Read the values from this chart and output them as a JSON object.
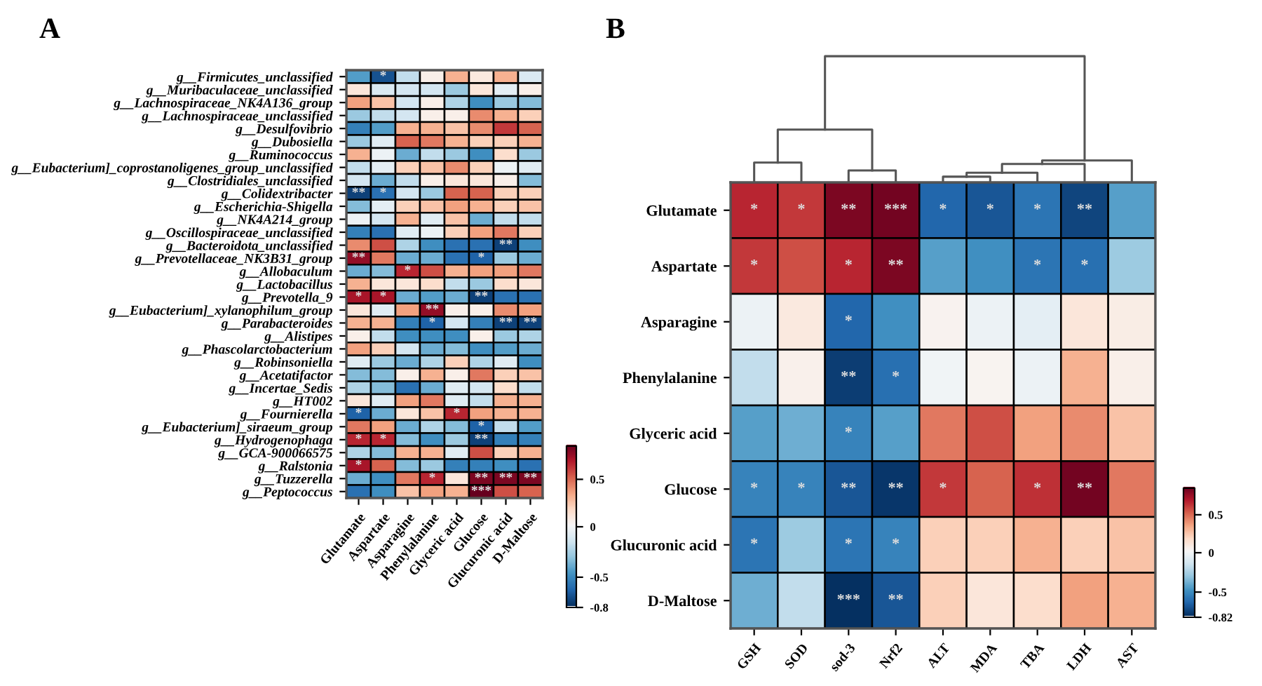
{
  "chart_data": [
    {
      "type": "heatmap",
      "title": "A",
      "categories": [
        "Glutamate",
        "Aspartate",
        "Asparagine",
        "Phenylalanine",
        "Glyceric acid",
        "Glucose",
        "Glucuronic acid",
        "D-Maltose"
      ],
      "y_categories": [
        "g__Firmicutes_unclassified",
        "g__Muribaculaceae_unclassified",
        "g__Lachnospiraceae_NK4A136_group",
        "g__Lachnospiraceae_unclassified",
        "g__Desulfovibrio",
        "g__Dubosiella",
        "g__Ruminococcus",
        "g__Eubacterium]_coprostanoligenes_group_unclassified",
        "g__Clostridiales_unclassified",
        "g__Colidextribacter",
        "g__Escherichia-Shigella",
        "g__NK4A214_group",
        "g__Oscillospiraceae_unclassified",
        "g__Bacteroidota_unclassified",
        "g__Prevotellaceae_NK3B31_group",
        "g__Allobaculum",
        "g__Lactobacillus",
        "g__Prevotella_9",
        "g__Eubacterium]_xylanophilum_group",
        "g__Parabacteroides",
        "g__Alistipes",
        "g__Phascolarctobacterium",
        "g__Robinsoniella",
        "g__Acetatifactor",
        "g__Incertae_Sedis",
        "g__HT002",
        "g__Fournierella",
        "g__Eubacterium]_siraeum_group",
        "g__Hydrogenophaga",
        "g__GCA-900066575",
        "g__Ralstonia",
        "g__Tuzzerella",
        "g__Peptococcus"
      ],
      "cells": [
        [
          -0.45,
          -0.7,
          -0.2,
          0.05,
          0.3,
          0.08,
          0.3,
          -0.12
        ],
        [
          0.1,
          -0.12,
          -0.15,
          -0.15,
          -0.3,
          0.1,
          -0.08,
          0.05
        ],
        [
          0.35,
          0.25,
          -0.15,
          0.05,
          -0.25,
          -0.5,
          -0.3,
          -0.35
        ],
        [
          -0.3,
          -0.2,
          -0.15,
          0.05,
          0.05,
          0.4,
          0.3,
          0.2
        ],
        [
          -0.55,
          -0.45,
          0.3,
          0.3,
          0.25,
          0.4,
          0.6,
          0.5
        ],
        [
          -0.3,
          -0.1,
          0.5,
          0.45,
          0.3,
          0.2,
          0.2,
          0.3
        ],
        [
          0.3,
          -0.05,
          -0.4,
          -0.2,
          -0.3,
          -0.5,
          0.15,
          -0.3
        ],
        [
          -0.2,
          -0.08,
          0.2,
          0.25,
          0.4,
          0.2,
          -0.05,
          -0.1
        ],
        [
          -0.15,
          -0.4,
          -0.2,
          0.05,
          0.1,
          0.1,
          0.05,
          -0.35
        ],
        [
          -0.75,
          -0.6,
          -0.15,
          -0.3,
          0.5,
          0.5,
          0.2,
          0.2
        ],
        [
          -0.35,
          -0.08,
          0.2,
          0.25,
          0.35,
          0.3,
          0.2,
          0.25
        ],
        [
          -0.05,
          -0.15,
          0.3,
          -0.1,
          0.25,
          -0.4,
          -0.2,
          -0.2
        ],
        [
          -0.55,
          -0.6,
          -0.1,
          -0.05,
          0.2,
          0.35,
          0.45,
          0.2
        ],
        [
          0.4,
          0.55,
          -0.25,
          -0.5,
          -0.6,
          -0.6,
          -0.75,
          -0.5
        ],
        [
          0.75,
          0.45,
          -0.4,
          -0.4,
          -0.6,
          -0.65,
          -0.3,
          -0.4
        ],
        [
          -0.4,
          -0.35,
          0.65,
          0.55,
          0.3,
          0.35,
          0.35,
          0.45
        ],
        [
          0.3,
          0.1,
          0.1,
          0.15,
          -0.2,
          -0.3,
          0.15,
          0.1
        ],
        [
          0.7,
          0.7,
          -0.4,
          -0.45,
          -0.4,
          -0.75,
          -0.6,
          -0.6
        ],
        [
          0.1,
          -0.1,
          0.35,
          0.75,
          0.05,
          0.05,
          0.4,
          0.35
        ],
        [
          0.3,
          0.3,
          -0.55,
          -0.65,
          -0.15,
          -0.55,
          -0.75,
          -0.75
        ],
        [
          0.05,
          -0.2,
          -0.5,
          -0.5,
          -0.5,
          0.05,
          -0.3,
          -0.25
        ],
        [
          0.35,
          0.2,
          -0.15,
          -0.4,
          -0.35,
          -0.5,
          -0.45,
          -0.4
        ],
        [
          -0.1,
          -0.3,
          -0.4,
          -0.25,
          0.2,
          -0.25,
          -0.1,
          -0.5
        ],
        [
          -0.35,
          -0.35,
          0.05,
          0.3,
          0.05,
          0.45,
          0.2,
          0.25
        ],
        [
          -0.25,
          -0.35,
          -0.6,
          -0.4,
          -0.1,
          -0.15,
          0.15,
          -0.2
        ],
        [
          0.1,
          -0.1,
          0.35,
          0.45,
          -0.1,
          -0.2,
          0.3,
          0.3
        ],
        [
          -0.65,
          -0.4,
          0.1,
          0.25,
          0.65,
          0.35,
          0.3,
          0.3
        ],
        [
          0.45,
          0.35,
          -0.4,
          -0.25,
          -0.35,
          -0.65,
          -0.2,
          -0.45
        ],
        [
          0.65,
          0.65,
          -0.35,
          -0.5,
          -0.3,
          -0.75,
          -0.55,
          -0.55
        ],
        [
          -0.25,
          -0.35,
          0.3,
          0.3,
          -0.1,
          0.55,
          0.2,
          0.3
        ],
        [
          0.7,
          0.5,
          -0.35,
          -0.3,
          -0.55,
          -0.55,
          -0.5,
          -0.6
        ],
        [
          -0.4,
          -0.5,
          0.45,
          0.65,
          0.1,
          0.8,
          0.8,
          0.8
        ],
        [
          -0.6,
          -0.5,
          0.25,
          0.35,
          0.3,
          0.85,
          0.55,
          0.5
        ]
      ],
      "cell_labels": [
        [
          null,
          "*",
          null,
          null,
          null,
          null,
          null,
          null
        ],
        [
          null,
          null,
          null,
          null,
          null,
          null,
          null,
          null
        ],
        [
          null,
          null,
          null,
          null,
          null,
          null,
          null,
          null
        ],
        [
          null,
          null,
          null,
          null,
          null,
          null,
          null,
          null
        ],
        [
          null,
          null,
          null,
          null,
          null,
          null,
          null,
          null
        ],
        [
          null,
          null,
          null,
          null,
          null,
          null,
          null,
          null
        ],
        [
          null,
          null,
          null,
          null,
          null,
          null,
          null,
          null
        ],
        [
          null,
          null,
          null,
          null,
          null,
          null,
          null,
          null
        ],
        [
          null,
          null,
          null,
          null,
          null,
          null,
          null,
          null
        ],
        [
          "**",
          "*",
          null,
          null,
          null,
          null,
          null,
          null
        ],
        [
          null,
          null,
          null,
          null,
          null,
          null,
          null,
          null
        ],
        [
          null,
          null,
          null,
          null,
          null,
          null,
          null,
          null
        ],
        [
          null,
          null,
          null,
          null,
          null,
          null,
          null,
          null
        ],
        [
          null,
          null,
          null,
          null,
          null,
          null,
          "**",
          null
        ],
        [
          "**",
          null,
          null,
          null,
          null,
          "*",
          null,
          null
        ],
        [
          null,
          null,
          "*",
          null,
          null,
          null,
          null,
          null
        ],
        [
          null,
          null,
          null,
          null,
          null,
          null,
          null,
          null
        ],
        [
          "*",
          "*",
          null,
          null,
          null,
          "**",
          null,
          null
        ],
        [
          null,
          null,
          null,
          "**",
          null,
          null,
          null,
          null
        ],
        [
          null,
          null,
          null,
          "*",
          null,
          null,
          "**",
          "**"
        ],
        [
          null,
          null,
          null,
          null,
          null,
          null,
          null,
          null
        ],
        [
          null,
          null,
          null,
          null,
          null,
          null,
          null,
          null
        ],
        [
          null,
          null,
          null,
          null,
          null,
          null,
          null,
          null
        ],
        [
          null,
          null,
          null,
          null,
          null,
          null,
          null,
          null
        ],
        [
          null,
          null,
          null,
          null,
          null,
          null,
          null,
          null
        ],
        [
          null,
          null,
          null,
          null,
          null,
          null,
          null,
          null
        ],
        [
          "*",
          null,
          null,
          null,
          "*",
          null,
          null,
          null
        ],
        [
          null,
          null,
          null,
          null,
          null,
          "*",
          null,
          null
        ],
        [
          "*",
          "*",
          null,
          null,
          null,
          "**",
          null,
          null
        ],
        [
          null,
          null,
          null,
          null,
          null,
          null,
          null,
          null
        ],
        [
          "*",
          null,
          null,
          null,
          null,
          null,
          null,
          null
        ],
        [
          null,
          null,
          null,
          "*",
          null,
          "**",
          "**",
          "**"
        ],
        [
          null,
          null,
          null,
          null,
          null,
          "***",
          null,
          null
        ]
      ],
      "clim": [
        -0.8,
        0.85
      ],
      "cticks": [
        0.5,
        0,
        -0.5,
        -0.8
      ]
    },
    {
      "type": "heatmap",
      "title": "B",
      "categories": [
        "GSH",
        "SOD",
        "sod-3",
        "Nrf2",
        "ALT",
        "MDA",
        "TBA",
        "LDH",
        "AST"
      ],
      "y_categories": [
        "Glutamate",
        "Aspartate",
        "Asparagine",
        "Phenylalanine",
        "Glyceric acid",
        "Glucose",
        "Glucuronic acid",
        "D-Maltose"
      ],
      "cells": [
        [
          0.65,
          0.6,
          0.8,
          0.82,
          -0.65,
          -0.7,
          -0.6,
          -0.75,
          -0.45
        ],
        [
          0.6,
          0.55,
          0.65,
          0.8,
          -0.45,
          -0.5,
          -0.6,
          -0.62,
          -0.3
        ],
        [
          -0.05,
          0.08,
          -0.65,
          -0.5,
          0.03,
          -0.05,
          -0.08,
          0.1,
          0.06
        ],
        [
          -0.2,
          0.04,
          -0.78,
          -0.62,
          -0.03,
          0.02,
          -0.05,
          0.3,
          0.05
        ],
        [
          -0.45,
          -0.4,
          -0.55,
          -0.45,
          0.45,
          0.55,
          0.35,
          0.4,
          0.25
        ],
        [
          -0.55,
          -0.55,
          -0.7,
          -0.8,
          0.6,
          0.5,
          0.62,
          0.82,
          0.45
        ],
        [
          -0.6,
          -0.3,
          -0.6,
          -0.55,
          0.2,
          0.2,
          0.3,
          0.2,
          0.25
        ],
        [
          -0.4,
          -0.2,
          -0.82,
          -0.7,
          0.2,
          0.1,
          0.15,
          0.35,
          0.3
        ]
      ],
      "cell_labels": [
        [
          "*",
          "*",
          "**",
          "***",
          "*",
          "*",
          "*",
          "**",
          null
        ],
        [
          "*",
          null,
          "*",
          "**",
          null,
          null,
          "*",
          "*",
          null
        ],
        [
          null,
          null,
          "*",
          null,
          null,
          null,
          null,
          null,
          null
        ],
        [
          null,
          null,
          "**",
          "*",
          null,
          null,
          null,
          null,
          null
        ],
        [
          null,
          null,
          "*",
          null,
          null,
          null,
          null,
          null,
          null
        ],
        [
          "*",
          "*",
          "**",
          "**",
          "*",
          null,
          "*",
          "**",
          null
        ],
        [
          "*",
          null,
          "*",
          "*",
          null,
          null,
          null,
          null,
          null
        ],
        [
          null,
          null,
          "***",
          "**",
          null,
          null,
          null,
          null,
          null
        ]
      ],
      "clim": [
        -0.82,
        0.85
      ],
      "cticks": [
        0.5,
        0,
        -0.5,
        -0.82
      ]
    }
  ]
}
